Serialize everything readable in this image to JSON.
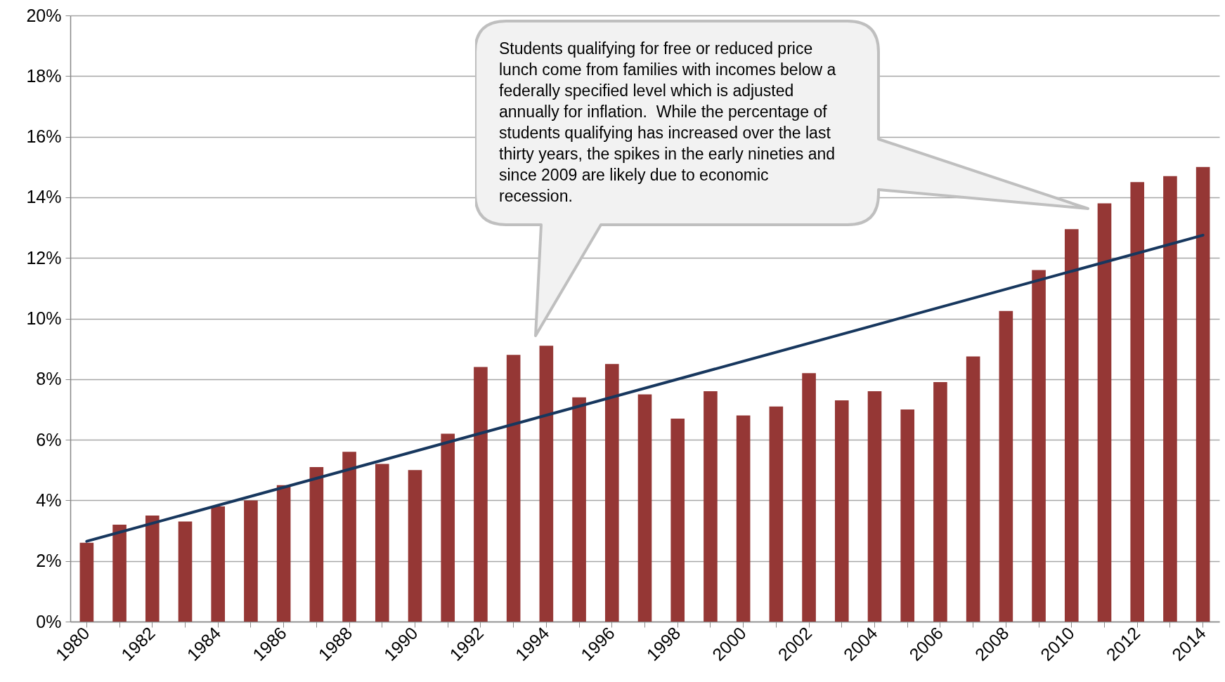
{
  "chart_data": {
    "type": "bar",
    "categories": [
      "1980",
      null,
      "1982",
      null,
      "1984",
      null,
      "1986",
      null,
      "1988",
      null,
      "1990",
      null,
      "1992",
      null,
      "1994",
      null,
      "1996",
      null,
      "1998",
      null,
      "2000",
      null,
      "2002",
      null,
      "2004",
      null,
      "2006",
      null,
      "2008",
      null,
      "2010",
      null,
      "2012",
      null,
      "2014"
    ],
    "series": [
      {
        "color": "#953735",
        "values": [
          2.6,
          3.2,
          3.5,
          3.3,
          3.8,
          4.0,
          4.5,
          5.1,
          5.6,
          5.2,
          5.0,
          6.2,
          8.4,
          8.8,
          9.1,
          7.4,
          8.5,
          7.5,
          6.7,
          7.6,
          6.8,
          7.1,
          8.2,
          7.3,
          7.6,
          7.0,
          7.9,
          8.75,
          10.25,
          11.6,
          12.95,
          13.8,
          14.5,
          14.7,
          15.0
        ]
      },
      {
        "type": "line",
        "color": "#17375e",
        "values": [
          2.65,
          null,
          null,
          null,
          null,
          null,
          null,
          null,
          null,
          null,
          null,
          null,
          null,
          null,
          null,
          null,
          null,
          null,
          null,
          null,
          null,
          null,
          null,
          null,
          null,
          null,
          null,
          null,
          null,
          null,
          null,
          null,
          null,
          null,
          12.75
        ]
      }
    ],
    "ylim": [
      0,
      20
    ],
    "yticks": [
      {
        "value": 0,
        "label": "0%"
      },
      {
        "value": 2,
        "label": "2%"
      },
      {
        "value": 4,
        "label": "4%"
      },
      {
        "value": 6,
        "label": "6%"
      },
      {
        "value": 8,
        "label": "8%"
      },
      {
        "value": 10,
        "label": "10%"
      },
      {
        "value": 12,
        "label": "12%"
      },
      {
        "value": 14,
        "label": "14%"
      },
      {
        "value": 16,
        "label": "16%"
      },
      {
        "value": 18,
        "label": "18%"
      },
      {
        "value": 20,
        "label": "20%"
      }
    ],
    "grid": "y",
    "annotations": [
      "Students qualifying for free or reduced price lunch come from families with incomes below a federally specified level which is adjusted annually for inflation.  While the percentage of students qualifying has increased over the last thirty years, the spikes in the early nineties and since 2009 are likely due to economic recession."
    ]
  }
}
